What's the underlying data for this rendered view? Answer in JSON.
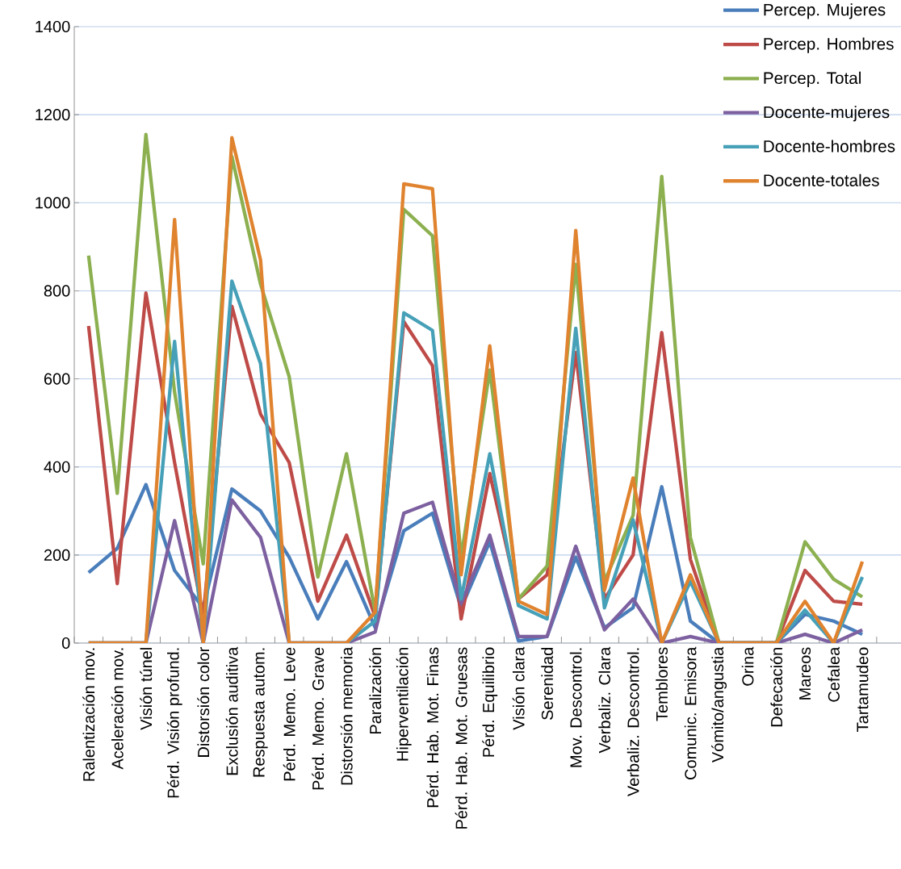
{
  "chart_data": {
    "type": "line",
    "categories": [
      "Ralentización mov.",
      "Aceleración mov.",
      "Visión túnel",
      "Pérd. Visión profund.",
      "Distorsión color",
      "Exclusión auditiva",
      "Respuesta autom.",
      "Pérd. Memo. Leve",
      "Pérd. Memo. Grave",
      "Distorsión memoria",
      "Paralización",
      "Hiperventilación",
      "Pérd. Hab. Mot. Finas",
      "Pérd. Hab. Mot. Gruesas",
      "Pérd. Equilibrio",
      "Visión clara",
      "Serenidad",
      "Mov. Descontrol.",
      "Verbaliz. Clara",
      "Verbaliz. Descontrol.",
      "Temblores",
      "Comunic. Emisora",
      "Vómito/angustia",
      "Orina",
      "Defecación",
      "Mareos",
      "Cefalea",
      "Tartamudeo"
    ],
    "series": [
      {
        "name": "Percep. Mujeres",
        "color": "#4a7ebb",
        "values": [
          160,
          215,
          360,
          165,
          80,
          350,
          300,
          195,
          55,
          185,
          35,
          255,
          295,
          80,
          230,
          5,
          15,
          195,
          35,
          80,
          355,
          50,
          0,
          0,
          0,
          65,
          50,
          20
        ]
      },
      {
        "name": "Percep. Hombres",
        "color": "#be4b48",
        "values": [
          720,
          135,
          795,
          410,
          60,
          765,
          520,
          410,
          95,
          245,
          60,
          730,
          630,
          55,
          385,
          100,
          155,
          660,
          100,
          200,
          705,
          190,
          0,
          0,
          0,
          165,
          95,
          88
        ]
      },
      {
        "name": "Percep. Total",
        "color": "#8cb050",
        "values": [
          880,
          340,
          1155,
          570,
          180,
          1105,
          815,
          605,
          150,
          430,
          70,
          985,
          925,
          195,
          620,
          100,
          175,
          860,
          140,
          290,
          1060,
          240,
          0,
          0,
          0,
          230,
          145,
          105
        ]
      },
      {
        "name": "Docente-mujeres",
        "color": "#7d60a0",
        "values": [
          0,
          0,
          0,
          278,
          0,
          325,
          240,
          0,
          0,
          0,
          25,
          295,
          320,
          90,
          245,
          15,
          15,
          220,
          30,
          100,
          0,
          15,
          0,
          0,
          0,
          20,
          0,
          30
        ]
      },
      {
        "name": "Docente-hombres",
        "color": "#46a0b8",
        "values": [
          0,
          0,
          0,
          685,
          0,
          822,
          635,
          0,
          0,
          0,
          50,
          750,
          710,
          100,
          430,
          85,
          55,
          715,
          80,
          280,
          0,
          140,
          0,
          0,
          0,
          75,
          0,
          150
        ]
      },
      {
        "name": "Docente-totales",
        "color": "#e0832f",
        "values": [
          0,
          0,
          0,
          962,
          0,
          1148,
          870,
          0,
          0,
          0,
          70,
          1043,
          1032,
          155,
          675,
          95,
          65,
          937,
          120,
          375,
          0,
          155,
          0,
          0,
          0,
          95,
          0,
          185
        ]
      }
    ],
    "ylim": [
      0,
      1400
    ],
    "yticks": [
      0,
      200,
      400,
      600,
      800,
      1000,
      1200,
      1400
    ],
    "grid": "y",
    "legend": "top right",
    "marker": "none",
    "line_style": "solid"
  }
}
